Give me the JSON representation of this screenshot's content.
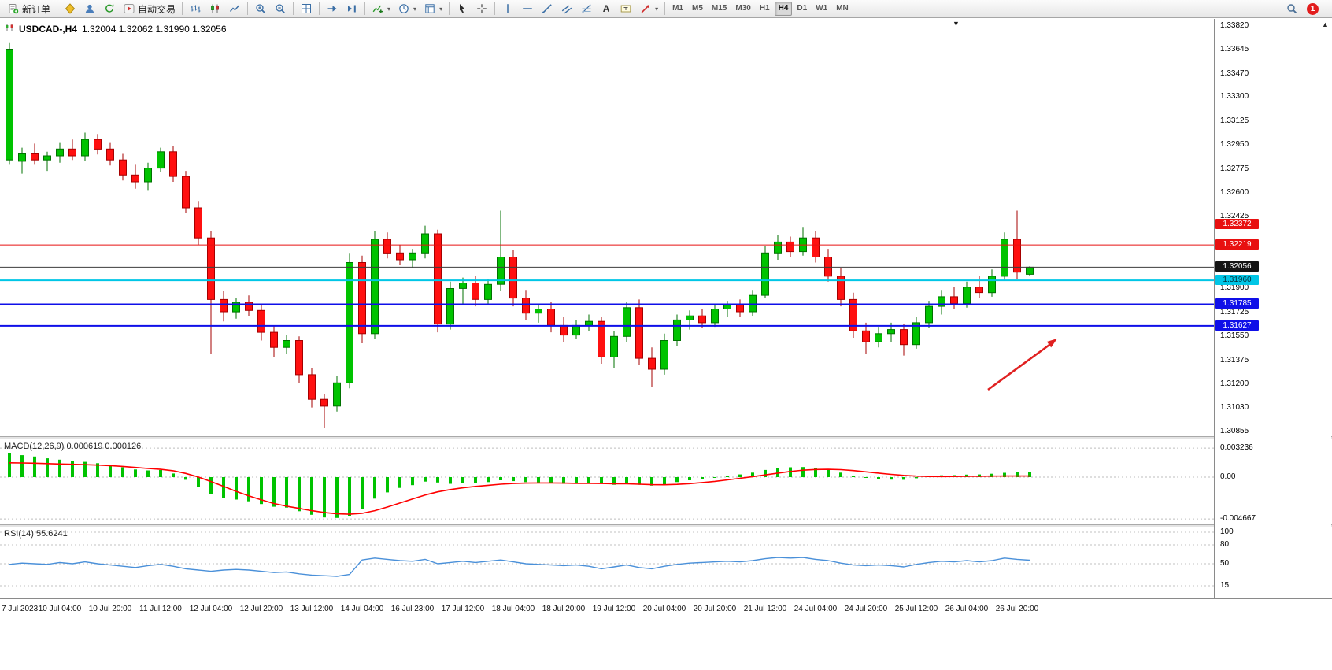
{
  "glyphs": {
    "dropdown": "▾",
    "shift_marker": "▼",
    "scroll_up": "▲"
  },
  "toolbar": {
    "items": [
      {
        "kind": "button",
        "name": "new-order-button",
        "icon": "new-order-icon",
        "label": "新订单"
      },
      {
        "kind": "sep"
      },
      {
        "kind": "icon",
        "name": "new-chart-button",
        "icon": "chart-window-icon"
      },
      {
        "kind": "icon",
        "name": "profiles-button",
        "icon": "profile-icon"
      },
      {
        "kind": "icon",
        "name": "refresh-button",
        "icon": "refresh-icon"
      },
      {
        "kind": "button",
        "name": "auto-trading-button",
        "icon": "play-icon",
        "label": "自动交易"
      },
      {
        "kind": "sep"
      },
      {
        "kind": "icon",
        "name": "bar-chart-button",
        "icon": "bar-chart-icon"
      },
      {
        "kind": "icon",
        "name": "candlestick-chart-button",
        "icon": "candlestick-icon"
      },
      {
        "kind": "icon",
        "name": "line-chart-button",
        "icon": "line-chart-icon"
      },
      {
        "kind": "sep"
      },
      {
        "kind": "icon",
        "name": "zoom-in-button",
        "icon": "zoom-in-icon"
      },
      {
        "kind": "icon",
        "name": "zoom-out-button",
        "icon": "zoom-out-icon"
      },
      {
        "kind": "sep"
      },
      {
        "kind": "icon",
        "name": "tile-windows-button",
        "icon": "tile-windows-icon"
      },
      {
        "kind": "sep"
      },
      {
        "kind": "icon",
        "name": "auto-scroll-button",
        "icon": "auto-scroll-icon"
      },
      {
        "kind": "icon",
        "name": "chart-shift-button",
        "icon": "chart-shift-icon"
      },
      {
        "kind": "sep"
      },
      {
        "kind": "icon",
        "name": "indicators-button",
        "icon": "indicators-icon",
        "dropdown": true
      },
      {
        "kind": "icon",
        "name": "periods-button",
        "icon": "clock-icon",
        "dropdown": true
      },
      {
        "kind": "icon",
        "name": "templates-button",
        "icon": "template-icon",
        "dropdown": true
      },
      {
        "kind": "sep"
      },
      {
        "kind": "icon",
        "name": "cursor-button",
        "icon": "cursor-icon"
      },
      {
        "kind": "icon",
        "name": "crosshair-button",
        "icon": "crosshair-icon"
      },
      {
        "kind": "sep"
      },
      {
        "kind": "icon",
        "name": "vertical-line-button",
        "icon": "vertical-line-icon"
      },
      {
        "kind": "icon",
        "name": "horizontal-line-button",
        "icon": "horizontal-line-icon"
      },
      {
        "kind": "icon",
        "name": "trendline-button",
        "icon": "trendline-icon"
      },
      {
        "kind": "icon",
        "name": "channel-button",
        "icon": "channel-icon"
      },
      {
        "kind": "icon",
        "name": "fibonacci-button",
        "icon": "fibonacci-icon"
      },
      {
        "kind": "icon",
        "name": "text-button",
        "icon": "text-icon"
      },
      {
        "kind": "icon",
        "name": "text-label-button",
        "icon": "text-label-icon"
      },
      {
        "kind": "icon",
        "name": "arrows-button",
        "icon": "arrow-icon",
        "dropdown": true
      },
      {
        "kind": "sep"
      }
    ],
    "timeframes": [
      "M1",
      "M5",
      "M15",
      "M30",
      "H1",
      "H4",
      "D1",
      "W1",
      "MN"
    ],
    "active_timeframe": "H4",
    "right_items": [
      {
        "kind": "icon",
        "name": "search-button",
        "icon": "search-icon"
      },
      {
        "kind": "badge",
        "name": "notification-badge",
        "label": "1"
      }
    ]
  },
  "chart": {
    "title_symbol": "USDCAD-,H4",
    "title_ohlc": "1.32004 1.32062 1.31990 1.32056",
    "macd_label": "MACD(12,26,9) 0.000619 0.000126",
    "rsi_label": "RSI(14) 55.6241"
  },
  "chart_data": {
    "type": "candlestick",
    "symbol": "USDCAD",
    "period": "H4",
    "current": {
      "open": 1.32004,
      "high": 1.32062,
      "low": 1.3199,
      "close": 1.32056
    },
    "style": {
      "bull": "#00c300",
      "bull_border": "#007200",
      "bear": "#ff1010",
      "bear_border": "#a60000"
    },
    "y_ticks": [
      "1.33820",
      "1.33645",
      "1.33470",
      "1.33300",
      "1.33125",
      "1.32950",
      "1.32775",
      "1.32600",
      "1.32425",
      "1.31900",
      "1.31725",
      "1.31550",
      "1.31375",
      "1.31200",
      "1.31030",
      "1.30855"
    ],
    "x_label_step": 4,
    "x_labels": [
      "7 Jul 2023",
      "10 Jul 04:00",
      "10 Jul 20:00",
      "11 Jul 12:00",
      "12 Jul 04:00",
      "12 Jul 20:00",
      "13 Jul 12:00",
      "14 Jul 04:00",
      "16 Jul 23:00",
      "17 Jul 12:00",
      "18 Jul 04:00",
      "18 Jul 20:00",
      "19 Jul 12:00",
      "20 Jul 04:00",
      "20 Jul 20:00",
      "21 Jul 12:00",
      "24 Jul 04:00",
      "24 Jul 20:00",
      "25 Jul 12:00",
      "26 Jul 04:00",
      "26 Jul 20:00"
    ],
    "candles": [
      [
        1.3284,
        1.337,
        1.3281,
        1.3365
      ],
      [
        1.3283,
        1.3293,
        1.3274,
        1.3289
      ],
      [
        1.3289,
        1.3296,
        1.3281,
        1.3284
      ],
      [
        1.3284,
        1.329,
        1.3276,
        1.3287
      ],
      [
        1.3287,
        1.3297,
        1.3282,
        1.3292
      ],
      [
        1.3292,
        1.3299,
        1.3284,
        1.3287
      ],
      [
        1.3287,
        1.3304,
        1.3283,
        1.3299
      ],
      [
        1.3299,
        1.3303,
        1.3288,
        1.3292
      ],
      [
        1.3292,
        1.3297,
        1.328,
        1.3284
      ],
      [
        1.3284,
        1.3289,
        1.3269,
        1.3273
      ],
      [
        1.3273,
        1.3281,
        1.3263,
        1.3268
      ],
      [
        1.3268,
        1.3282,
        1.3262,
        1.3278
      ],
      [
        1.3278,
        1.3293,
        1.3275,
        1.329
      ],
      [
        1.329,
        1.3294,
        1.3268,
        1.3272
      ],
      [
        1.3272,
        1.3276,
        1.3245,
        1.3249
      ],
      [
        1.3249,
        1.3254,
        1.3222,
        1.3227
      ],
      [
        1.3227,
        1.3232,
        1.3142,
        1.3182
      ],
      [
        1.3182,
        1.3188,
        1.3166,
        1.3173
      ],
      [
        1.3173,
        1.3183,
        1.3168,
        1.318
      ],
      [
        1.318,
        1.3185,
        1.317,
        1.3174
      ],
      [
        1.3174,
        1.3178,
        1.3152,
        1.3158
      ],
      [
        1.3158,
        1.3163,
        1.314,
        1.3147
      ],
      [
        1.3147,
        1.3156,
        1.3142,
        1.3152
      ],
      [
        1.3152,
        1.3155,
        1.3121,
        1.3127
      ],
      [
        1.3127,
        1.3132,
        1.3103,
        1.3109
      ],
      [
        1.3109,
        1.3113,
        1.3088,
        1.3104
      ],
      [
        1.3104,
        1.3126,
        1.31,
        1.3121
      ],
      [
        1.3121,
        1.3216,
        1.3117,
        1.3209
      ],
      [
        1.3209,
        1.3214,
        1.315,
        1.3157
      ],
      [
        1.3157,
        1.3232,
        1.3153,
        1.3226
      ],
      [
        1.3226,
        1.3231,
        1.3212,
        1.3216
      ],
      [
        1.3216,
        1.3222,
        1.3207,
        1.3211
      ],
      [
        1.3211,
        1.3219,
        1.3205,
        1.3216
      ],
      [
        1.3216,
        1.3236,
        1.3212,
        1.323
      ],
      [
        1.323,
        1.3233,
        1.3158,
        1.3164
      ],
      [
        1.3164,
        1.3195,
        1.316,
        1.319
      ],
      [
        1.319,
        1.3198,
        1.3179,
        1.3194
      ],
      [
        1.3194,
        1.3199,
        1.3177,
        1.3182
      ],
      [
        1.3182,
        1.3197,
        1.3178,
        1.3193
      ],
      [
        1.3193,
        1.3247,
        1.3188,
        1.3213
      ],
      [
        1.3213,
        1.3218,
        1.3177,
        1.3183
      ],
      [
        1.3183,
        1.3189,
        1.3167,
        1.3172
      ],
      [
        1.3172,
        1.3179,
        1.3165,
        1.3175
      ],
      [
        1.3175,
        1.318,
        1.3158,
        1.3163
      ],
      [
        1.3163,
        1.3169,
        1.3151,
        1.3156
      ],
      [
        1.3156,
        1.3167,
        1.3153,
        1.3163
      ],
      [
        1.3163,
        1.3171,
        1.3159,
        1.3166
      ],
      [
        1.3166,
        1.3169,
        1.3135,
        1.314
      ],
      [
        1.314,
        1.3159,
        1.3132,
        1.3155
      ],
      [
        1.3155,
        1.318,
        1.3151,
        1.3176
      ],
      [
        1.3176,
        1.3182,
        1.3134,
        1.3139
      ],
      [
        1.3139,
        1.3147,
        1.3118,
        1.3131
      ],
      [
        1.3131,
        1.3157,
        1.3127,
        1.3152
      ],
      [
        1.3152,
        1.3171,
        1.3148,
        1.3167
      ],
      [
        1.3167,
        1.3174,
        1.316,
        1.317
      ],
      [
        1.317,
        1.3175,
        1.3161,
        1.3165
      ],
      [
        1.3165,
        1.3179,
        1.3162,
        1.3175
      ],
      [
        1.3175,
        1.3181,
        1.3169,
        1.3178
      ],
      [
        1.3178,
        1.3182,
        1.3169,
        1.3173
      ],
      [
        1.3173,
        1.3189,
        1.317,
        1.3185
      ],
      [
        1.3185,
        1.3221,
        1.3183,
        1.3216
      ],
      [
        1.3216,
        1.3229,
        1.3211,
        1.3224
      ],
      [
        1.3224,
        1.3228,
        1.3213,
        1.3217
      ],
      [
        1.3217,
        1.3235,
        1.3214,
        1.3227
      ],
      [
        1.3227,
        1.3232,
        1.3209,
        1.3213
      ],
      [
        1.3213,
        1.3219,
        1.3195,
        1.3199
      ],
      [
        1.3199,
        1.3205,
        1.3177,
        1.3182
      ],
      [
        1.3182,
        1.3187,
        1.3154,
        1.3159
      ],
      [
        1.3159,
        1.3165,
        1.3142,
        1.3151
      ],
      [
        1.3151,
        1.3162,
        1.3147,
        1.3157
      ],
      [
        1.3157,
        1.3165,
        1.3151,
        1.316
      ],
      [
        1.316,
        1.3164,
        1.3141,
        1.3149
      ],
      [
        1.3149,
        1.3169,
        1.3146,
        1.3165
      ],
      [
        1.3165,
        1.3181,
        1.3161,
        1.3177
      ],
      [
        1.3177,
        1.3189,
        1.3171,
        1.3184
      ],
      [
        1.3184,
        1.3191,
        1.3175,
        1.3179
      ],
      [
        1.3179,
        1.3195,
        1.3176,
        1.3191
      ],
      [
        1.3191,
        1.3199,
        1.3183,
        1.3187
      ],
      [
        1.3187,
        1.3204,
        1.3184,
        1.3199
      ],
      [
        1.3199,
        1.3231,
        1.3196,
        1.3226
      ],
      [
        1.3226,
        1.3247,
        1.3197,
        1.3202
      ],
      [
        1.32004,
        1.32062,
        1.3199,
        1.32056
      ]
    ],
    "hlines": [
      {
        "price": 1.32372,
        "label": "1.32372",
        "color": "#e81010",
        "width": 1,
        "text": "#ffffff"
      },
      {
        "price": 1.32219,
        "label": "1.32219",
        "color": "#e81010",
        "width": 1,
        "text": "#ffffff"
      },
      {
        "price": 1.32056,
        "label": "1.32056",
        "color": "#3c3c3c",
        "width": 1,
        "current": true,
        "tag": "#141414",
        "text": "#ffffff"
      },
      {
        "price": 1.3196,
        "label": "1.31960",
        "color": "#00c6e6",
        "width": 2,
        "tag": "#00c6e6",
        "text": "#00323c"
      },
      {
        "price": 1.31785,
        "label": "1.31785",
        "color": "#0f0fe8",
        "width": 2,
        "text": "#ffffff"
      },
      {
        "price": 1.31627,
        "label": "1.31627",
        "color": "#0f0fe8",
        "width": 2,
        "text": "#ffffff"
      }
    ],
    "arrow": {
      "color": "#e02020"
    },
    "macd": {
      "name": "MACD(12,26,9)",
      "value": 0.000619,
      "signal_value": 0.000126,
      "histogram_color": "#00c300",
      "signal_color": "#ff0000",
      "levels": [
        "0.003236",
        "0.00",
        "-0.004667"
      ],
      "histogram": [
        0.00265,
        0.00245,
        0.0023,
        0.0021,
        0.00195,
        0.0018,
        0.0017,
        0.00155,
        0.00135,
        0.0011,
        0.00085,
        0.00075,
        0.0008,
        0.0004,
        -0.0003,
        -0.0011,
        -0.0019,
        -0.0023,
        -0.0025,
        -0.0027,
        -0.003,
        -0.0033,
        -0.0034,
        -0.0038,
        -0.0042,
        -0.0045,
        -0.00455,
        -0.0043,
        -0.0036,
        -0.0024,
        -0.0017,
        -0.0012,
        -0.0009,
        -0.0005,
        -0.0006,
        -0.00075,
        -0.0007,
        -0.00065,
        -0.00055,
        -0.00035,
        -0.00045,
        -0.00055,
        -0.0006,
        -0.00068,
        -0.00075,
        -0.0007,
        -0.00062,
        -0.00075,
        -0.00085,
        -0.0007,
        -0.00085,
        -0.00095,
        -0.0008,
        -0.00055,
        -0.00035,
        -0.0002,
        -5e-05,
        0.00015,
        0.0003,
        0.0005,
        0.0008,
        0.001,
        0.0011,
        0.00112,
        0.001,
        0.0008,
        0.0005,
        0.00018,
        -8e-05,
        -0.0002,
        -0.00028,
        -0.0003,
        -0.00012,
        0.0001,
        0.0002,
        0.00022,
        0.00028,
        0.0003,
        0.00038,
        0.00048,
        0.00055,
        0.000619
      ],
      "signal": [
        0.0016,
        0.00158,
        0.00155,
        0.00151,
        0.00147,
        0.00143,
        0.00139,
        0.00134,
        0.00128,
        0.00119,
        0.00108,
        0.00097,
        0.00087,
        0.00071,
        0.00041,
        1e-05,
        -0.00049,
        -0.00104,
        -0.00159,
        -0.00209,
        -0.00254,
        -0.00294,
        -0.00324,
        -0.00349,
        -0.00374,
        -0.00394,
        -0.00409,
        -0.00414,
        -0.00404,
        -0.00374,
        -0.00334,
        -0.00289,
        -0.00244,
        -0.00199,
        -0.00164,
        -0.00139,
        -0.00119,
        -0.00104,
        -0.00091,
        -0.00079,
        -0.00071,
        -0.00067,
        -0.00065,
        -0.00065,
        -0.00067,
        -0.00069,
        -0.00069,
        -0.00071,
        -0.00075,
        -0.00075,
        -0.00079,
        -0.00084,
        -0.00085,
        -0.00081,
        -0.00073,
        -0.00061,
        -0.00047,
        -0.00031,
        -0.00013,
        5e-05,
        0.00025,
        0.00045,
        0.00063,
        0.00077,
        0.00085,
        0.00087,
        0.00083,
        0.00073,
        0.00059,
        0.00045,
        0.00031,
        0.00019,
        0.00011,
        7e-05,
        6e-05,
        7e-05,
        9e-05,
        0.0001,
        0.00011,
        0.00012,
        0.00012,
        0.000126
      ]
    },
    "rsi": {
      "name": "RSI(14)",
      "value": 55.6241,
      "color": "#4a90d9",
      "levels": [
        "100",
        "80",
        "50",
        "15"
      ],
      "values": [
        49,
        51,
        50,
        49,
        52,
        50,
        53,
        50,
        48,
        46,
        44,
        47,
        49,
        46,
        42,
        40,
        38,
        40,
        41,
        40,
        38,
        36,
        37,
        34,
        32,
        31,
        30,
        33,
        56,
        59,
        57,
        55,
        54,
        57,
        50,
        52,
        54,
        52,
        54,
        56,
        53,
        50,
        49,
        48,
        47,
        48,
        46,
        42,
        45,
        48,
        44,
        42,
        46,
        49,
        51,
        52,
        53,
        54,
        53,
        55,
        58,
        60,
        59,
        60,
        57,
        55,
        51,
        48,
        47,
        48,
        47,
        45,
        49,
        52,
        54,
        53,
        55,
        53,
        55,
        59,
        57,
        55.6241
      ]
    }
  }
}
